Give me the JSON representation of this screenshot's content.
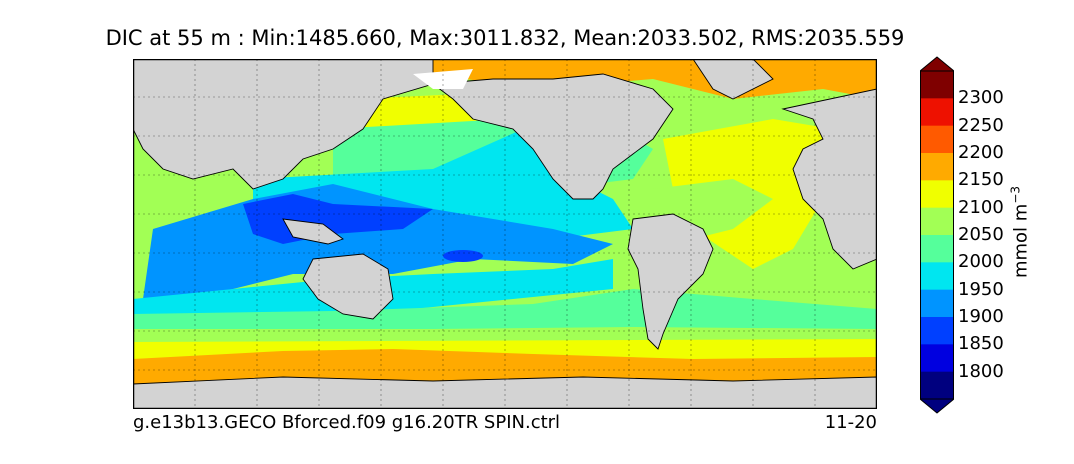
{
  "title": "DIC at 55 m : Min:1485.660, Max:3011.832, Mean:2033.502, RMS:2035.559",
  "footer_left": "g.e13b13.GECO Bforced.f09 g16.20TR SPIN.ctrl",
  "footer_right": "11-20",
  "colorbar": {
    "unit_label": "mmol m",
    "unit_exponent": "−3",
    "ticks": [
      "2300",
      "2250",
      "2200",
      "2150",
      "2100",
      "2050",
      "2000",
      "1950",
      "1900",
      "1850",
      "1800"
    ],
    "colors": [
      "#00007f",
      "#0000e0",
      "#0040ff",
      "#0094ff",
      "#00e6f0",
      "#55ff9b",
      "#a2ff55",
      "#f0ff00",
      "#ffaa00",
      "#ff5a00",
      "#ee1100",
      "#7f0000"
    ],
    "extend": "both"
  },
  "map": {
    "land_color": "#d3d3d3",
    "grid": "dotted",
    "projection": "global lat-lon"
  }
}
